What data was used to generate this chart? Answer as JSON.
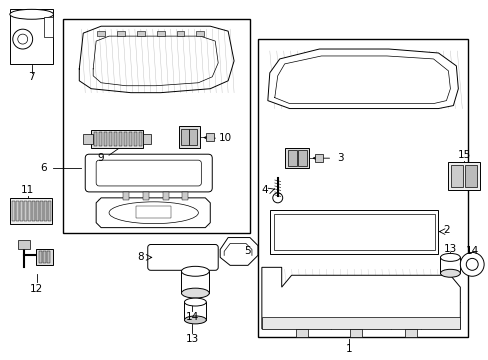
{
  "bg_color": "#ffffff",
  "line_color": "#000000",
  "lw_thick": 1.0,
  "lw_med": 0.7,
  "lw_thin": 0.5,
  "hatch_color": "#888888",
  "gray_light": "#cccccc",
  "gray_mid": "#aaaaaa",
  "gray_dark": "#888888"
}
